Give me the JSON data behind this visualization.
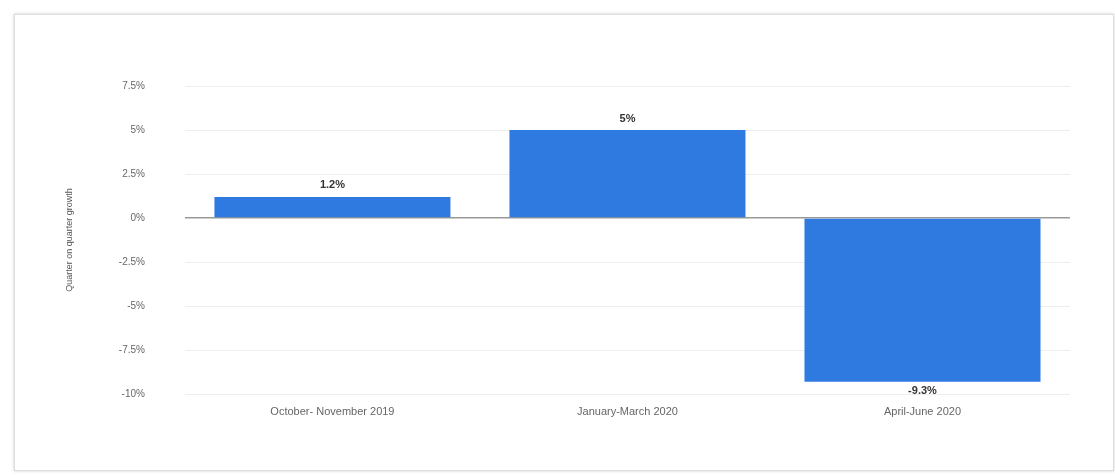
{
  "chart_data": {
    "type": "bar",
    "ylabel": "Quarter on quarter growth",
    "categories": [
      "October- November 2019",
      "January-March 2020",
      "April-June 2020"
    ],
    "values": [
      1.2,
      5,
      -9.3
    ],
    "color": "#2f7ae0",
    "value_labels": [
      "1.2%",
      "5%",
      "-9.3%"
    ],
    "ylim": [
      -10,
      7.5
    ],
    "yticks": [
      {
        "value": -10,
        "label": "-10%"
      },
      {
        "value": -7.5,
        "label": "-7.5%"
      },
      {
        "value": -5,
        "label": "-5%"
      },
      {
        "value": -2.5,
        "label": "-2.5%"
      },
      {
        "value": 0,
        "label": "0%"
      },
      {
        "value": 2.5,
        "label": "2.5%"
      },
      {
        "value": 5,
        "label": "5%"
      },
      {
        "value": 7.5,
        "label": "7.5%"
      }
    ],
    "grid": "y",
    "legend": false
  }
}
